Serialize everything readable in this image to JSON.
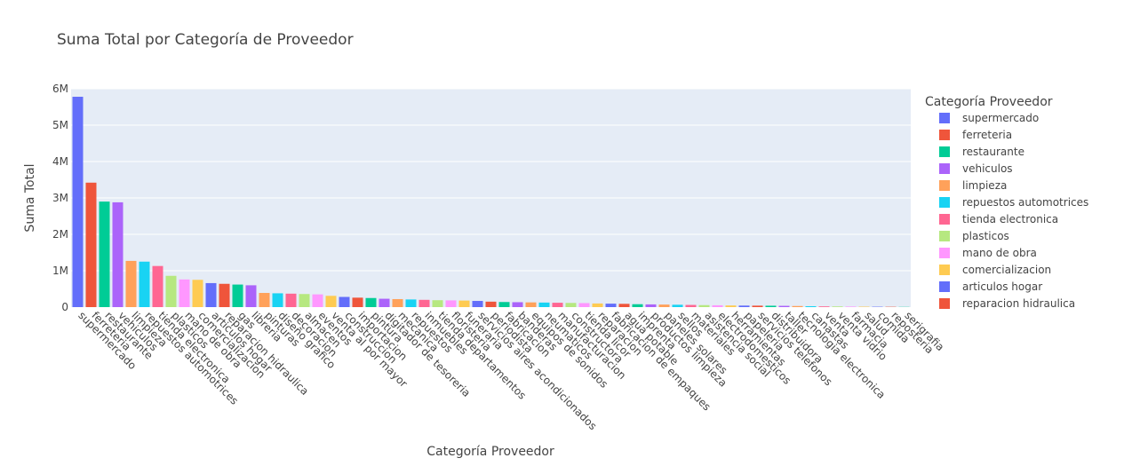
{
  "chart_data": {
    "type": "bar",
    "title": "Suma Total por Categoría de Proveedor",
    "xlabel": "Categoría Proveedor",
    "ylabel": "Suma Total",
    "legend_title": "Categoría Proveedor",
    "legend_position": "right",
    "grid": true,
    "ylim": [
      0,
      6000000
    ],
    "yticks": [
      {
        "value": 0,
        "label": "0"
      },
      {
        "value": 1000000,
        "label": "1M"
      },
      {
        "value": 2000000,
        "label": "2M"
      },
      {
        "value": 3000000,
        "label": "3M"
      },
      {
        "value": 4000000,
        "label": "4M"
      },
      {
        "value": 5000000,
        "label": "5M"
      },
      {
        "value": 6000000,
        "label": "6M"
      }
    ],
    "palette": [
      "#636efa",
      "#EF553B",
      "#00cc96",
      "#ab63fa",
      "#FFA15A",
      "#19d3f3",
      "#FF6692",
      "#B6E880",
      "#FF97FF",
      "#FECB52"
    ],
    "plot_bg": "#E5ECF6",
    "categories": [
      "supermercado",
      "ferreteria",
      "restaurante",
      "vehiculos",
      "limpieza",
      "repuestos automotrices",
      "tienda electronica",
      "plasticos",
      "mano de obra",
      "comercializacion",
      "articulos hogar",
      "reparacion hidraulica",
      "gas",
      "libreria",
      "pinturas",
      "diseño grafico",
      "decoracion",
      "almacen",
      "eventos",
      "venta al por mayor",
      "construccion",
      "importacion",
      "pintura",
      "digitador de tesoreria",
      "mecanica",
      "repuestos",
      "inmuebles",
      "tienda departamentos",
      "floristeria",
      "funeraria",
      "servicios aires acondicionados",
      "periodista",
      "fabricacion",
      "banderas",
      "equipos de sonidos",
      "neumaticos",
      "manufacturacion",
      "constructora",
      "tienda licor",
      "reparacion",
      "fabricacion de empaques",
      "agua potable",
      "imprenta",
      "productos limpieza",
      "paneles solares",
      "sellos",
      "materiales",
      "asistencia social",
      "electrodomesticos",
      "herramientas",
      "papeleria",
      "servicios telefonos",
      "distribuidora",
      "taller",
      "tecnologia electronica",
      "canastas",
      "venta",
      "venta vidrio",
      "farmacia",
      "salud",
      "comida",
      "reposteria",
      "serigrafia"
    ],
    "values": [
      5780000,
      3420000,
      2900000,
      2880000,
      1270000,
      1250000,
      1130000,
      860000,
      760000,
      750000,
      660000,
      640000,
      620000,
      600000,
      390000,
      380000,
      370000,
      360000,
      350000,
      310000,
      280000,
      260000,
      250000,
      230000,
      220000,
      210000,
      200000,
      190000,
      185000,
      180000,
      170000,
      150000,
      140000,
      135000,
      130000,
      125000,
      120000,
      115000,
      110000,
      100000,
      95000,
      90000,
      80000,
      75000,
      70000,
      65000,
      60000,
      55000,
      50000,
      45000,
      42000,
      40000,
      38000,
      35000,
      30000,
      25000,
      20000,
      18000,
      15000,
      12000,
      10000,
      8000,
      5000
    ],
    "legend_visible": [
      "supermercado",
      "ferreteria",
      "restaurante",
      "vehiculos",
      "limpieza",
      "repuestos automotrices",
      "tienda electronica",
      "plasticos",
      "mano de obra",
      "comercializacion",
      "articulos hogar",
      "reparacion hidraulica"
    ]
  }
}
